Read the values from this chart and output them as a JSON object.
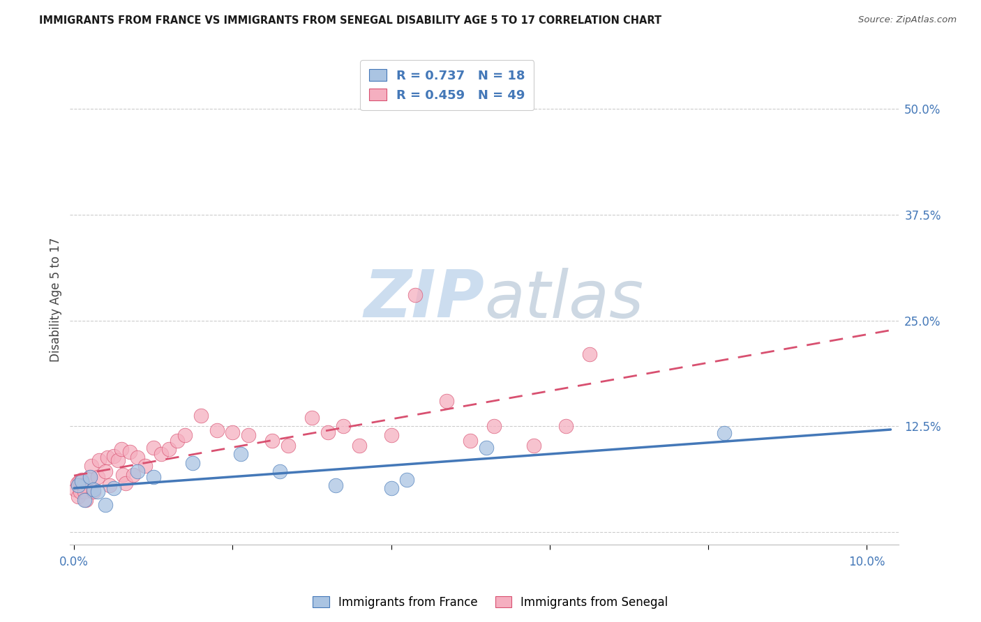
{
  "title": "IMMIGRANTS FROM FRANCE VS IMMIGRANTS FROM SENEGAL DISABILITY AGE 5 TO 17 CORRELATION CHART",
  "source": "Source: ZipAtlas.com",
  "ylabel_label": "Disability Age 5 to 17",
  "france_R": 0.737,
  "france_N": 18,
  "senegal_R": 0.459,
  "senegal_N": 49,
  "france_color": "#aac4e2",
  "senegal_color": "#f5afc0",
  "france_line_color": "#4478b8",
  "senegal_line_color": "#d85070",
  "tick_label_color": "#4478b8",
  "watermark_color": "#ccddef",
  "background_color": "#ffffff",
  "grid_color": "#cccccc",
  "france_x": [
    0.0005,
    0.001,
    0.0013,
    0.002,
    0.0025,
    0.003,
    0.004,
    0.005,
    0.008,
    0.01,
    0.015,
    0.021,
    0.026,
    0.033,
    0.04,
    0.042,
    0.052,
    0.082
  ],
  "france_y": [
    0.055,
    0.06,
    0.038,
    0.065,
    0.05,
    0.048,
    0.032,
    0.052,
    0.072,
    0.065,
    0.082,
    0.092,
    0.072,
    0.055,
    0.052,
    0.062,
    0.1,
    0.117
  ],
  "senegal_x": [
    0.0002,
    0.0004,
    0.0005,
    0.0007,
    0.0008,
    0.001,
    0.0012,
    0.0013,
    0.0015,
    0.002,
    0.0022,
    0.0025,
    0.003,
    0.0032,
    0.004,
    0.0042,
    0.0045,
    0.005,
    0.0055,
    0.006,
    0.0062,
    0.0065,
    0.007,
    0.0075,
    0.008,
    0.009,
    0.01,
    0.011,
    0.012,
    0.013,
    0.014,
    0.016,
    0.018,
    0.02,
    0.022,
    0.025,
    0.027,
    0.03,
    0.032,
    0.034,
    0.036,
    0.04,
    0.043,
    0.047,
    0.05,
    0.053,
    0.058,
    0.062,
    0.065
  ],
  "senegal_y": [
    0.05,
    0.058,
    0.042,
    0.06,
    0.048,
    0.062,
    0.055,
    0.048,
    0.038,
    0.065,
    0.078,
    0.048,
    0.065,
    0.085,
    0.072,
    0.088,
    0.055,
    0.09,
    0.085,
    0.098,
    0.068,
    0.058,
    0.095,
    0.068,
    0.088,
    0.078,
    0.1,
    0.092,
    0.098,
    0.108,
    0.115,
    0.138,
    0.12,
    0.118,
    0.115,
    0.108,
    0.102,
    0.135,
    0.118,
    0.125,
    0.102,
    0.115,
    0.28,
    0.155,
    0.108,
    0.125,
    0.102,
    0.125,
    0.21
  ],
  "xlim_min": -0.0005,
  "xlim_max": 0.104,
  "ylim_min": -0.015,
  "ylim_max": 0.565,
  "xtick_positions": [
    0.0,
    0.02,
    0.04,
    0.06,
    0.08,
    0.1
  ],
  "ytick_positions": [
    0.0,
    0.125,
    0.25,
    0.375,
    0.5
  ]
}
